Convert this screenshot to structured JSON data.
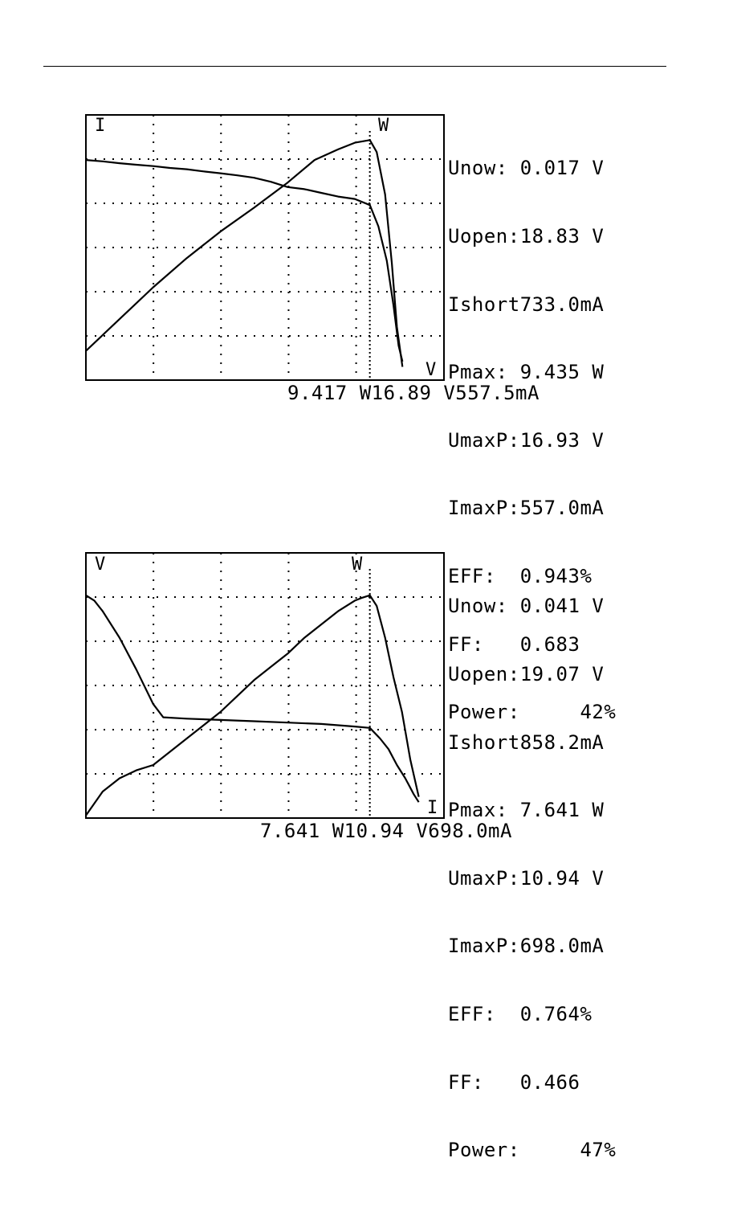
{
  "chart_data": [
    {
      "type": "line",
      "title": "",
      "corner_labels": {
        "top_left": "I",
        "top_mid": "W",
        "bottom_right": "V"
      },
      "readouts": [
        "Unow: 0.017 V",
        "Uopen:18.83 V",
        "Ishort733.0mA",
        "Pmax: 9.435 W",
        "UmaxP:16.93 V",
        "ImaxP:557.0mA",
        "EFF:  0.943%",
        "FF:   0.683",
        "Power:     42%"
      ],
      "footer": "9.417 W16.89 V557.5mA",
      "xlim": [
        0,
        21.3
      ],
      "ylim": [
        0,
        1
      ],
      "grid": true,
      "marker_x": 16.89,
      "series": [
        {
          "x": [
            0,
            1,
            2,
            3,
            4,
            5,
            6,
            7,
            8,
            9,
            10,
            11,
            12,
            13,
            14,
            15,
            16,
            16.89,
            17.4,
            17.9,
            18.3,
            18.6,
            18.83
          ],
          "y": [
            0.83,
            0.825,
            0.818,
            0.812,
            0.807,
            0.8,
            0.795,
            0.787,
            0.78,
            0.772,
            0.763,
            0.748,
            0.728,
            0.72,
            0.706,
            0.692,
            0.683,
            0.66,
            0.58,
            0.45,
            0.28,
            0.13,
            0.07
          ]
        },
        {
          "x": [
            0,
            2,
            4,
            6,
            8,
            10,
            12,
            13.6,
            15,
            16,
            16.89,
            17.3,
            17.8,
            18.2,
            18.5,
            18.83
          ],
          "y": [
            0.11,
            0.23,
            0.35,
            0.46,
            0.56,
            0.65,
            0.745,
            0.83,
            0.87,
            0.895,
            0.905,
            0.86,
            0.7,
            0.44,
            0.2,
            0.05
          ]
        }
      ]
    },
    {
      "type": "line",
      "title": "",
      "corner_labels": {
        "top_left": "V",
        "top_mid": "W",
        "bottom_right": "I"
      },
      "readouts": [
        "Unow: 0.041 V",
        "Uopen:19.07 V",
        "Ishort858.2mA",
        "Pmax: 7.641 W",
        "UmaxP:10.94 V",
        "ImaxP:698.0mA",
        "EFF:  0.764%",
        "FF:   0.466",
        "Power:     47%"
      ],
      "footer": "7.641 W10.94 V698.0mA",
      "xlim": [
        0,
        21.3
      ],
      "ylim": [
        0,
        1
      ],
      "grid": true,
      "marker_x": 16.89,
      "series": [
        {
          "x": [
            0,
            0.5,
            1,
            2,
            3,
            4,
            4.6,
            6,
            8,
            10,
            12,
            14,
            15,
            16,
            16.89,
            17.5,
            18,
            18.5,
            19,
            19.5,
            19.8
          ],
          "y": [
            0.84,
            0.82,
            0.78,
            0.68,
            0.56,
            0.43,
            0.38,
            0.375,
            0.37,
            0.365,
            0.36,
            0.355,
            0.35,
            0.345,
            0.34,
            0.3,
            0.26,
            0.2,
            0.15,
            0.09,
            0.06
          ]
        },
        {
          "x": [
            0,
            1,
            2,
            3,
            4,
            5,
            6,
            7,
            8,
            9,
            10,
            11,
            12,
            13,
            14,
            15,
            16,
            16.4,
            16.89,
            17.3,
            17.8,
            18.3,
            18.8,
            19.3,
            19.8
          ],
          "y": [
            0.01,
            0.1,
            0.15,
            0.18,
            0.2,
            0.25,
            0.3,
            0.35,
            0.4,
            0.46,
            0.52,
            0.57,
            0.62,
            0.68,
            0.73,
            0.78,
            0.82,
            0.83,
            0.84,
            0.8,
            0.68,
            0.53,
            0.4,
            0.22,
            0.08
          ]
        }
      ]
    }
  ]
}
